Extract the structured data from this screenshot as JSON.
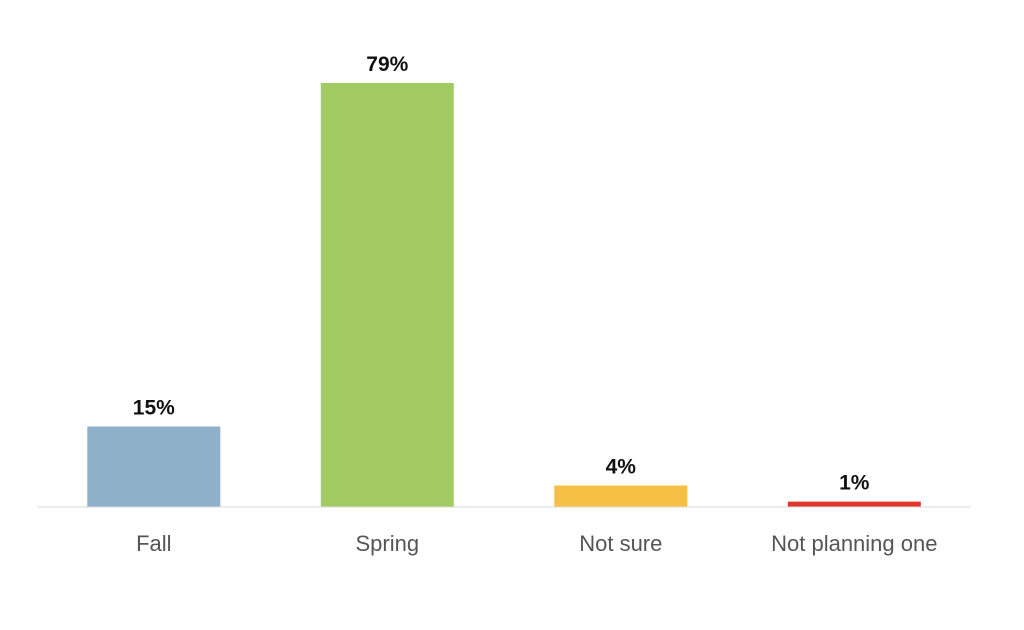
{
  "chart_data": {
    "type": "bar",
    "categories": [
      "Fall",
      "Spring",
      "Not sure",
      "Not planning one"
    ],
    "values": [
      15,
      79,
      4,
      1
    ],
    "data_labels": [
      "15%",
      "79%",
      "4%",
      "1%"
    ],
    "colors": [
      "#8fb0c9",
      "#a2cc63",
      "#f5c043",
      "#e0362c"
    ],
    "ylim": [
      0,
      79
    ],
    "grid": false,
    "legend": "none"
  }
}
